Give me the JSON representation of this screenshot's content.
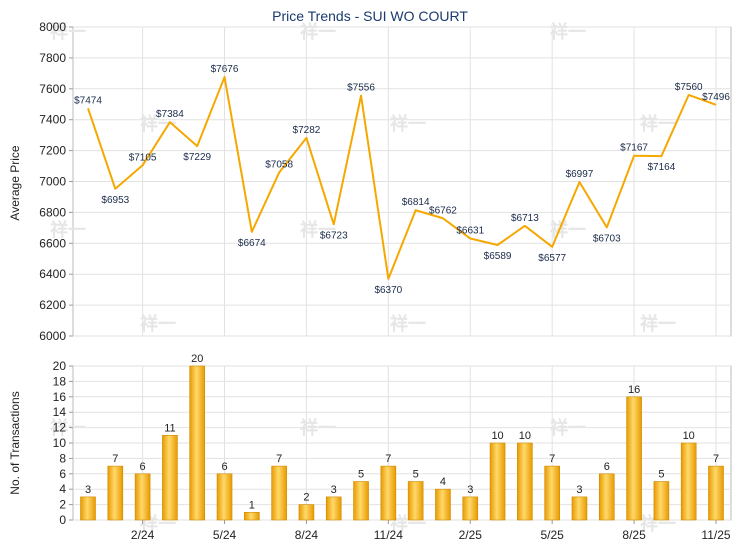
{
  "chart_data": [
    {
      "type": "line",
      "title": "Price Trends - SUI WO COURT",
      "xlabel": "",
      "ylabel": "Average Price",
      "ylim": [
        6000,
        8000
      ],
      "yticks": [
        6000,
        6200,
        6400,
        6600,
        6800,
        7000,
        7200,
        7400,
        7600,
        7800,
        8000
      ],
      "grid": true,
      "label_prefix": "$",
      "values": [
        7474,
        6953,
        7105,
        7384,
        7229,
        7676,
        6674,
        7058,
        7282,
        6723,
        7556,
        6370,
        6814,
        6762,
        6631,
        6589,
        6713,
        6577,
        6997,
        6703,
        7167,
        7164,
        7560,
        7496
      ],
      "color": "#f5a800"
    },
    {
      "type": "bar",
      "title": "",
      "xlabel": "",
      "ylabel": "No. of Transactions",
      "ylim": [
        0,
        20
      ],
      "yticks": [
        0,
        2,
        4,
        6,
        8,
        10,
        12,
        14,
        16,
        18,
        20
      ],
      "grid": true,
      "values": [
        3,
        7,
        6,
        11,
        20,
        6,
        1,
        7,
        2,
        3,
        5,
        7,
        5,
        4,
        3,
        10,
        10,
        7,
        3,
        6,
        16,
        5,
        10,
        7
      ],
      "x_tick_labels": [
        "2/24",
        "5/24",
        "8/24",
        "11/24",
        "2/25",
        "5/25",
        "8/25",
        "11/25"
      ],
      "x_tick_index": [
        2,
        5,
        8,
        11,
        14,
        17,
        20,
        23
      ],
      "color": "#f5a800"
    }
  ],
  "watermark": "祥一"
}
